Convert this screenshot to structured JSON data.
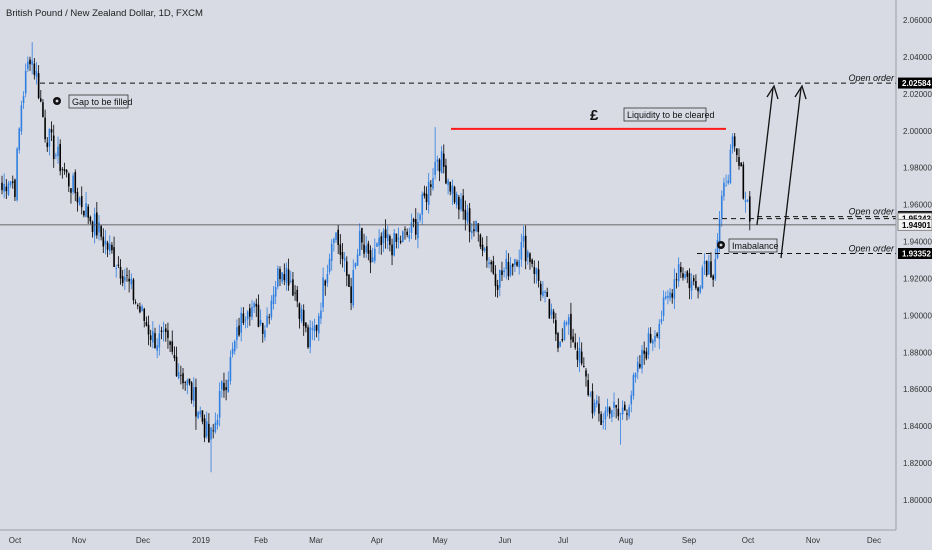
{
  "title": "British Pound / New Zealand Dollar, 1D, FXCM",
  "pound_symbol": "£",
  "chart_data": {
    "type": "candlestick",
    "title": "British Pound / New Zealand Dollar, 1D, FXCM",
    "ylim": [
      1.795,
      2.065
    ],
    "y_ticks": [
      "2.06000",
      "2.04000",
      "2.02000",
      "2.00000",
      "1.98000",
      "1.96000",
      "1.94000",
      "1.92000",
      "1.90000",
      "1.88000",
      "1.86000",
      "1.84000",
      "1.82000",
      "1.80000"
    ],
    "x_ticks": [
      "Oct",
      "Nov",
      "Dec",
      "2019",
      "Feb",
      "Mar",
      "Apr",
      "May",
      "Jun",
      "Jul",
      "Aug",
      "Sep",
      "Oct",
      "Nov",
      "Dec"
    ],
    "path": [
      [
        0,
        1.968
      ],
      [
        3,
        1.975
      ],
      [
        6,
        1.97
      ],
      [
        9,
        2.015
      ],
      [
        13,
        2.042
      ],
      [
        16,
        2.03
      ],
      [
        20,
        2.0
      ],
      [
        30,
        1.975
      ],
      [
        40,
        1.955
      ],
      [
        50,
        1.935
      ],
      [
        57,
        1.922
      ],
      [
        63,
        1.905
      ],
      [
        70,
        1.888
      ],
      [
        76,
        1.885
      ],
      [
        85,
        1.865
      ],
      [
        92,
        1.847
      ],
      [
        96,
        1.832
      ],
      [
        98,
        1.836
      ],
      [
        101,
        1.855
      ],
      [
        105,
        1.87
      ],
      [
        110,
        1.893
      ],
      [
        114,
        1.908
      ],
      [
        118,
        1.9
      ],
      [
        122,
        1.895
      ],
      [
        126,
        1.915
      ],
      [
        130,
        1.928
      ],
      [
        134,
        1.92
      ],
      [
        138,
        1.905
      ],
      [
        142,
        1.885
      ],
      [
        146,
        1.895
      ],
      [
        150,
        1.922
      ],
      [
        154,
        1.948
      ],
      [
        158,
        1.93
      ],
      [
        162,
        1.912
      ],
      [
        166,
        1.94
      ],
      [
        170,
        1.928
      ],
      [
        174,
        1.935
      ],
      [
        178,
        1.94
      ],
      [
        182,
        1.938
      ],
      [
        186,
        1.942
      ],
      [
        190,
        1.945
      ],
      [
        194,
        1.955
      ],
      [
        198,
        1.97
      ],
      [
        202,
        1.987
      ],
      [
        206,
        1.978
      ],
      [
        210,
        1.965
      ],
      [
        214,
        1.955
      ],
      [
        218,
        1.948
      ],
      [
        222,
        1.943
      ],
      [
        226,
        1.93
      ],
      [
        230,
        1.92
      ],
      [
        234,
        1.925
      ],
      [
        238,
        1.932
      ],
      [
        242,
        1.938
      ],
      [
        246,
        1.93
      ],
      [
        250,
        1.915
      ],
      [
        254,
        1.9
      ],
      [
        258,
        1.888
      ],
      [
        262,
        1.895
      ],
      [
        266,
        1.885
      ],
      [
        270,
        1.868
      ],
      [
        274,
        1.852
      ],
      [
        278,
        1.843
      ],
      [
        282,
        1.852
      ],
      [
        286,
        1.845
      ],
      [
        290,
        1.852
      ],
      [
        294,
        1.865
      ],
      [
        298,
        1.88
      ],
      [
        302,
        1.89
      ],
      [
        306,
        1.9
      ],
      [
        310,
        1.912
      ],
      [
        314,
        1.928
      ],
      [
        318,
        1.92
      ],
      [
        322,
        1.915
      ],
      [
        326,
        1.93
      ],
      [
        330,
        1.925
      ],
      [
        333,
        1.95
      ],
      [
        336,
        1.975
      ],
      [
        339,
        1.99
      ],
      [
        342,
        1.98
      ],
      [
        345,
        1.965
      ],
      [
        347,
        1.957
      ]
    ],
    "extremes": [
      [
        14,
        2.048
      ],
      [
        14,
        2.048
      ],
      [
        90,
        1.838
      ],
      [
        97,
        1.815
      ],
      [
        201,
        2.002
      ],
      [
        287,
        1.83
      ],
      [
        339,
        1.992
      ]
    ],
    "levels": [
      {
        "label": "Open order",
        "value": "2.02584",
        "style": "dashed"
      },
      {
        "label": "Open order",
        "value": "1.95351",
        "style": "dashed"
      },
      {
        "label": "",
        "value": "1.95243",
        "style": "dashed"
      },
      {
        "label": "",
        "value": "1.94901",
        "style": "solid-thin"
      },
      {
        "label": "Open order",
        "value": "1.93352",
        "style": "dashed"
      }
    ],
    "liquidity_level": 2.001,
    "annotations": [
      "Gap to be filled",
      "Liquidity to be cleared",
      "Imabalance"
    ],
    "colors": {
      "up": "#2f7fe0",
      "down": "#000000",
      "background": "#d8dae4",
      "liquidity": "#ff1a1a"
    }
  }
}
